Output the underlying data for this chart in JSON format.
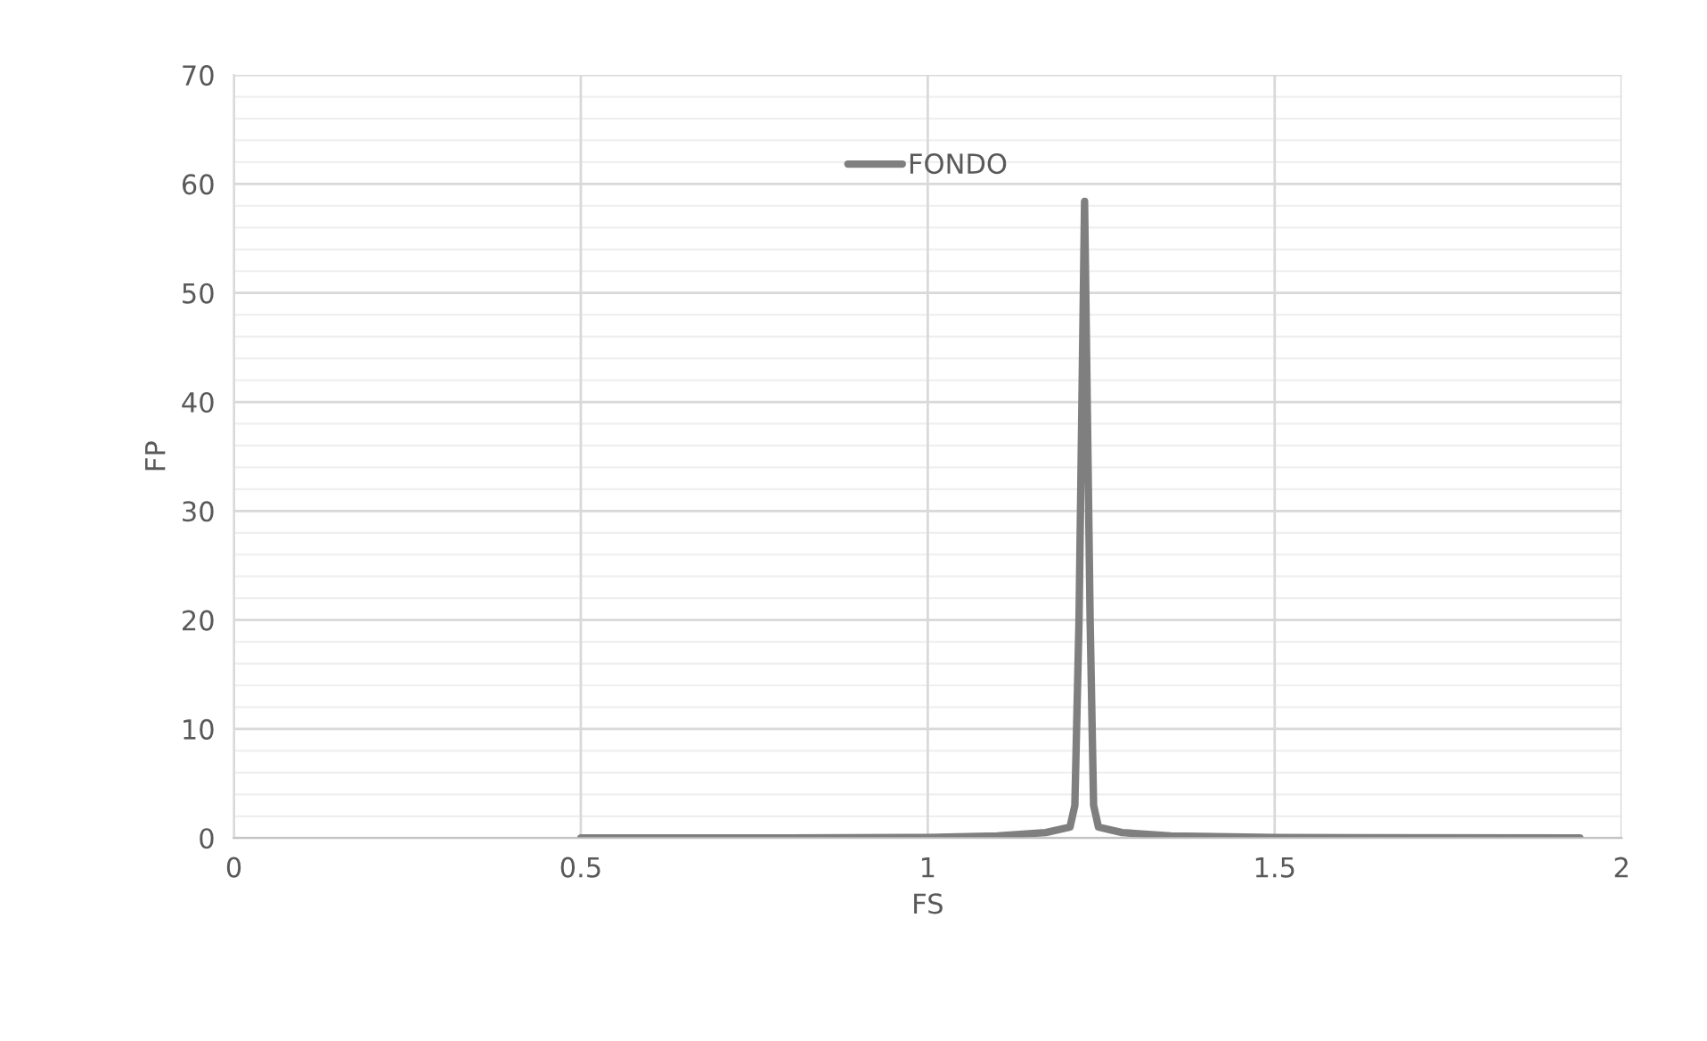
{
  "chart_data": {
    "type": "line",
    "xlabel": "FS",
    "ylabel": "FP",
    "series": [
      {
        "name": "FONDO",
        "color": "#7f7f7f",
        "x": [
          0.5,
          0.8,
          1.0,
          1.1,
          1.17,
          1.205,
          1.212,
          1.218,
          1.226,
          1.234,
          1.239,
          1.246,
          1.28,
          1.35,
          1.5,
          1.94
        ],
        "values": [
          0,
          0,
          0.05,
          0.2,
          0.5,
          1,
          3,
          20,
          58.4,
          20,
          3,
          1,
          0.5,
          0.2,
          0.05,
          0
        ]
      }
    ],
    "xlim": [
      0,
      2
    ],
    "xticks": [
      0,
      0.5,
      1,
      1.5,
      2
    ],
    "ylim": [
      0,
      70
    ],
    "yticks": [
      0,
      10,
      20,
      30,
      40,
      50,
      60,
      70
    ],
    "grid": true,
    "legend": "top",
    "marker": "none",
    "line_style": "solid"
  }
}
